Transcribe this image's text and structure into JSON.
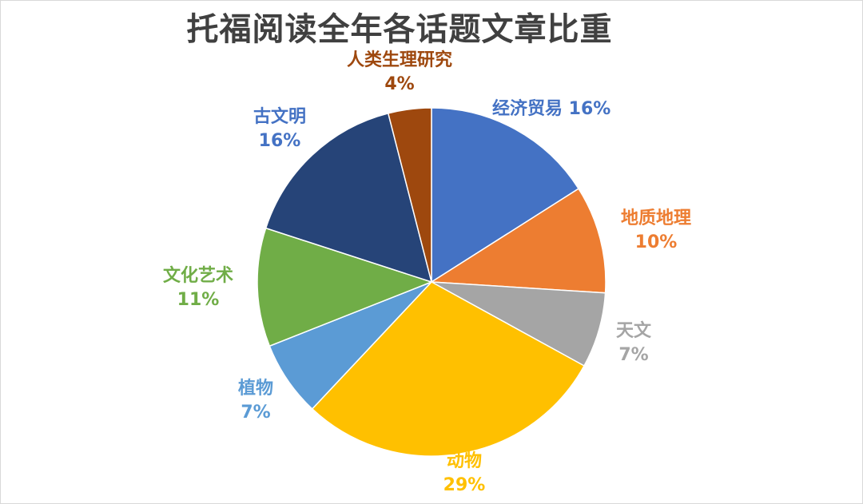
{
  "chart_data": {
    "type": "pie",
    "title": "托福阅读全年各话题文章比重",
    "slices": [
      {
        "name": "经济贸易",
        "value": 16,
        "label": "16%",
        "color": "#4472C4",
        "label_color": "#4472C4"
      },
      {
        "name": "地质地理",
        "value": 10,
        "label": "10%",
        "color": "#ED7D31",
        "label_color": "#ED7D31"
      },
      {
        "name": "天文",
        "value": 7,
        "label": "7%",
        "color": "#A5A5A5",
        "label_color": "#A5A5A5"
      },
      {
        "name": "动物",
        "value": 29,
        "label": "29%",
        "color": "#FFC000",
        "label_color": "#FFC000"
      },
      {
        "name": "植物",
        "value": 7,
        "label": "7%",
        "color": "#5B9BD5",
        "label_color": "#5B9BD5"
      },
      {
        "name": "文化艺术",
        "value": 11,
        "label": "11%",
        "color": "#70AD47",
        "label_color": "#70AD47"
      },
      {
        "name": "古文明",
        "value": 16,
        "label": "16%",
        "color": "#264478",
        "label_color": "#4472C4"
      },
      {
        "name": "人类生理研究",
        "value": 4,
        "label": "4%",
        "color": "#9E480E",
        "label_color": "#9E480E"
      }
    ]
  }
}
